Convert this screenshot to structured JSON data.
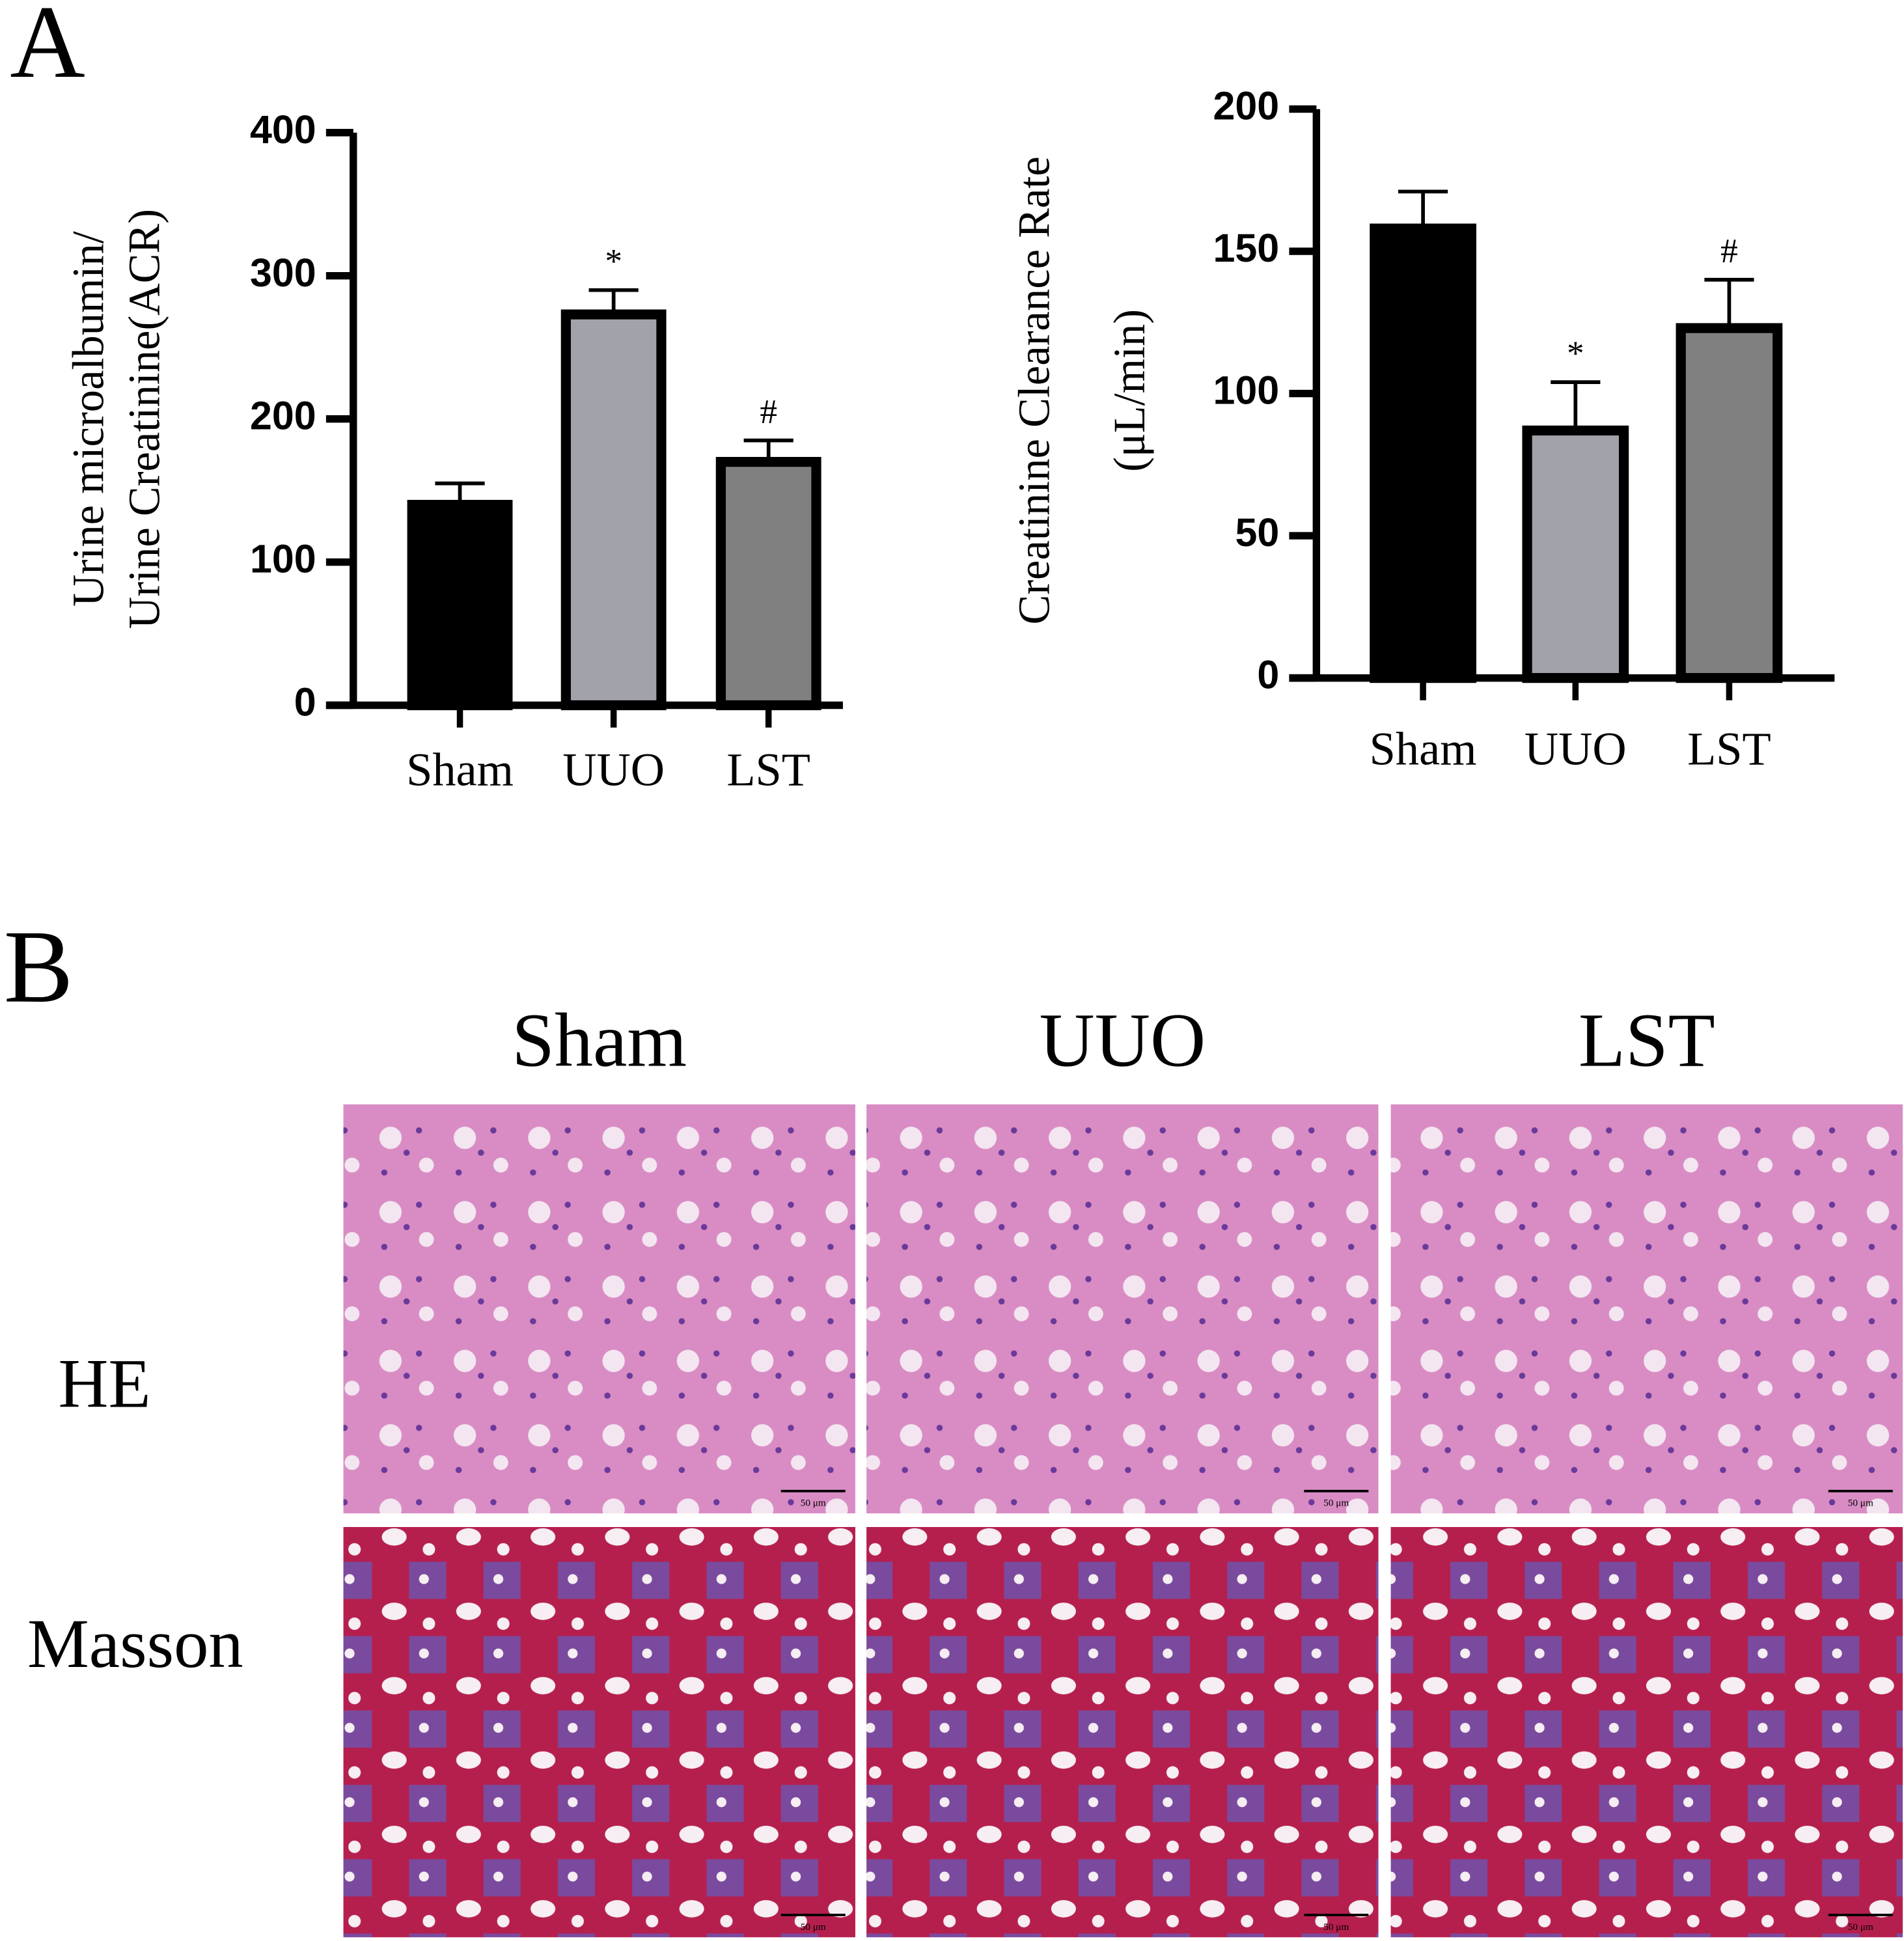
{
  "panel_a": {
    "label": "A"
  },
  "chart_data": [
    {
      "type": "bar",
      "y_label": [
        "Urine microalbumin/",
        "Urine Creatinine(ACR)"
      ],
      "categories": [
        "Sham",
        "UUO",
        "LST"
      ],
      "values": [
        140,
        273,
        170
      ],
      "errors": [
        15,
        17,
        15
      ],
      "annotations": [
        null,
        "*",
        "#"
      ],
      "colors": [
        "#000000",
        "#a2a2aa",
        "#808080"
      ],
      "ylim": [
        0,
        400
      ],
      "yticks": [
        0,
        100,
        200,
        300,
        400
      ]
    },
    {
      "type": "bar",
      "y_label": [
        "Creatinine Clearance Rate",
        "(μL/min)"
      ],
      "categories": [
        "Sham",
        "UUO",
        "LST"
      ],
      "values": [
        158,
        87,
        123
      ],
      "errors": [
        13,
        17,
        17
      ],
      "annotations": [
        null,
        "*",
        "#"
      ],
      "colors": [
        "#000000",
        "#a2a2aa",
        "#808080"
      ],
      "ylim": [
        0,
        200
      ],
      "yticks": [
        0,
        50,
        100,
        150,
        200
      ]
    }
  ],
  "panel_b": {
    "label": "B",
    "columns": [
      "Sham",
      "UUO",
      "LST"
    ],
    "rows": [
      "HE",
      "Masson"
    ],
    "scale_bar": "50 μm"
  }
}
